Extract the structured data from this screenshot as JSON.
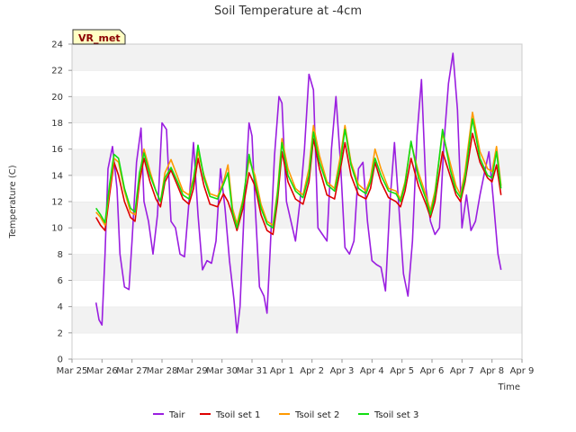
{
  "chart_data": {
    "type": "line",
    "title": "Soil Temperature at -4cm",
    "xlabel": "Time",
    "ylabel": "Temperature (C)",
    "ylim": [
      0,
      24
    ],
    "yticks": [
      0,
      2,
      4,
      6,
      8,
      10,
      12,
      14,
      16,
      18,
      20,
      22,
      24
    ],
    "xlim": [
      0,
      15
    ],
    "xtick_labels": [
      "Mar 25",
      "Mar 26",
      "Mar 27",
      "Mar 28",
      "Mar 29",
      "Mar 30",
      "Mar 31",
      "Apr 1",
      "Apr 2",
      "Apr 3",
      "Apr 4",
      "Apr 5",
      "Apr 6",
      "Apr 7",
      "Apr 8",
      "Apr 9"
    ],
    "x_unit": "days since Mar 25 00:00",
    "grid": "horizontal bands",
    "legend_position": "bottom",
    "station_badge": "VR_met",
    "colors": {
      "Tair": "#9a1ee0",
      "Tsoil set 1": "#dd0000",
      "Tsoil set 2": "#ff9900",
      "Tsoil set 3": "#11dd11"
    },
    "series": [
      {
        "name": "Tair",
        "x": [
          0.8,
          0.9,
          1.0,
          1.1,
          1.2,
          1.35,
          1.5,
          1.6,
          1.75,
          1.9,
          2.0,
          2.15,
          2.3,
          2.4,
          2.55,
          2.7,
          2.85,
          3.0,
          3.15,
          3.3,
          3.45,
          3.6,
          3.75,
          3.9,
          4.05,
          4.2,
          4.35,
          4.5,
          4.65,
          4.8,
          4.95,
          5.1,
          5.25,
          5.4,
          5.5,
          5.6,
          5.75,
          5.9,
          6.0,
          6.1,
          6.25,
          6.4,
          6.5,
          6.6,
          6.75,
          6.9,
          7.0,
          7.15,
          7.3,
          7.45,
          7.6,
          7.75,
          7.9,
          8.05,
          8.2,
          8.35,
          8.5,
          8.65,
          8.8,
          8.95,
          9.1,
          9.25,
          9.4,
          9.55,
          9.7,
          9.85,
          10.0,
          10.15,
          10.3,
          10.45,
          10.6,
          10.75,
          10.9,
          11.05,
          11.2,
          11.35,
          11.5,
          11.65,
          11.8,
          11.95,
          12.1,
          12.25,
          12.4,
          12.55,
          12.7,
          12.85,
          13.0,
          13.15,
          13.3,
          13.45,
          13.6,
          13.75,
          13.9,
          14.05,
          14.2,
          14.3
        ],
        "y": [
          4.3,
          3.0,
          2.6,
          8.0,
          14.5,
          16.2,
          13.0,
          8.0,
          5.5,
          5.3,
          9.0,
          15.0,
          17.6,
          12.0,
          10.5,
          8.0,
          11.0,
          18.0,
          17.5,
          10.5,
          10.0,
          8.0,
          7.8,
          12.0,
          16.5,
          11.0,
          6.8,
          7.5,
          7.3,
          9.0,
          14.5,
          11.5,
          7.5,
          4.5,
          2.0,
          4.0,
          12.0,
          18.0,
          17.0,
          12.0,
          5.5,
          4.8,
          3.5,
          8.0,
          15.5,
          20.0,
          19.5,
          12.0,
          10.5,
          9.0,
          12.0,
          16.0,
          21.7,
          20.5,
          10.0,
          9.5,
          9.0,
          16.0,
          20.0,
          15.0,
          8.5,
          8.0,
          9.0,
          14.5,
          15.0,
          10.5,
          7.5,
          7.2,
          7.0,
          5.2,
          12.0,
          16.5,
          11.5,
          6.5,
          4.8,
          9.0,
          17.0,
          21.3,
          13.0,
          10.5,
          9.5,
          10.0,
          16.5,
          21.0,
          23.3,
          19.0,
          10.0,
          12.5,
          9.8,
          10.5,
          12.5,
          14.2,
          15.8,
          12.0,
          8.0,
          6.8
        ]
      },
      {
        "name": "Tsoil set 1",
        "x": [
          0.8,
          0.95,
          1.1,
          1.25,
          1.4,
          1.55,
          1.75,
          1.95,
          2.1,
          2.25,
          2.4,
          2.6,
          2.8,
          2.95,
          3.1,
          3.3,
          3.5,
          3.7,
          3.9,
          4.05,
          4.2,
          4.4,
          4.6,
          4.85,
          5.05,
          5.2,
          5.35,
          5.5,
          5.7,
          5.9,
          6.1,
          6.3,
          6.5,
          6.7,
          6.85,
          7.0,
          7.2,
          7.45,
          7.7,
          7.9,
          8.05,
          8.25,
          8.5,
          8.75,
          8.95,
          9.1,
          9.3,
          9.55,
          9.8,
          9.95,
          10.1,
          10.3,
          10.55,
          10.8,
          10.95,
          11.1,
          11.3,
          11.55,
          11.8,
          11.95,
          12.1,
          12.35,
          12.6,
          12.8,
          12.95,
          13.1,
          13.35,
          13.6,
          13.85,
          14.0,
          14.15,
          14.3
        ],
        "y": [
          10.8,
          10.2,
          9.8,
          12.5,
          15.0,
          14.0,
          12.0,
          10.8,
          10.5,
          13.5,
          15.3,
          13.5,
          12.2,
          11.6,
          13.5,
          14.4,
          13.3,
          12.2,
          11.8,
          13.0,
          15.3,
          13.2,
          11.8,
          11.6,
          12.6,
          12.0,
          11.0,
          9.8,
          11.5,
          14.2,
          13.2,
          11.0,
          9.8,
          9.5,
          12.0,
          15.8,
          13.5,
          12.2,
          11.8,
          13.5,
          16.8,
          14.5,
          12.5,
          12.2,
          14.5,
          16.5,
          14.0,
          12.5,
          12.2,
          13.0,
          15.0,
          13.5,
          12.3,
          12.0,
          11.6,
          12.8,
          15.3,
          13.2,
          11.8,
          10.8,
          12.0,
          15.8,
          14.0,
          12.5,
          12.0,
          13.5,
          17.2,
          15.0,
          13.8,
          13.5,
          14.8,
          12.5
        ]
      },
      {
        "name": "Tsoil set 2",
        "x": [
          0.8,
          0.95,
          1.1,
          1.25,
          1.4,
          1.55,
          1.75,
          1.95,
          2.1,
          2.25,
          2.4,
          2.6,
          2.8,
          2.95,
          3.1,
          3.3,
          3.5,
          3.7,
          3.9,
          4.05,
          4.2,
          4.4,
          4.6,
          4.85,
          5.05,
          5.2,
          5.35,
          5.5,
          5.7,
          5.9,
          6.1,
          6.3,
          6.5,
          6.7,
          6.85,
          7.0,
          7.2,
          7.45,
          7.7,
          7.9,
          8.05,
          8.25,
          8.5,
          8.75,
          8.95,
          9.1,
          9.3,
          9.55,
          9.8,
          9.95,
          10.1,
          10.3,
          10.55,
          10.8,
          10.95,
          11.1,
          11.3,
          11.55,
          11.8,
          11.95,
          12.1,
          12.35,
          12.6,
          12.8,
          12.95,
          13.1,
          13.35,
          13.6,
          13.85,
          14.0,
          14.15,
          14.3
        ],
        "y": [
          11.2,
          10.8,
          10.2,
          13.0,
          15.3,
          15.0,
          12.8,
          11.2,
          11.0,
          14.0,
          16.0,
          14.3,
          12.8,
          12.0,
          14.2,
          15.2,
          14.0,
          12.8,
          12.5,
          13.8,
          15.8,
          14.0,
          12.6,
          12.4,
          13.5,
          14.8,
          11.5,
          10.3,
          12.2,
          15.2,
          14.0,
          11.8,
          10.5,
          10.2,
          12.8,
          16.8,
          14.5,
          13.0,
          12.5,
          14.5,
          17.8,
          15.5,
          13.5,
          13.0,
          15.5,
          17.8,
          15.0,
          13.3,
          12.8,
          13.8,
          16.0,
          14.5,
          13.0,
          12.8,
          12.2,
          13.5,
          16.5,
          14.2,
          12.5,
          11.3,
          12.8,
          17.2,
          15.0,
          13.2,
          12.5,
          14.3,
          18.8,
          15.8,
          14.5,
          14.3,
          16.2,
          13.2
        ]
      },
      {
        "name": "Tsoil set 3",
        "x": [
          0.8,
          0.95,
          1.1,
          1.25,
          1.4,
          1.55,
          1.75,
          1.95,
          2.1,
          2.25,
          2.4,
          2.6,
          2.8,
          2.95,
          3.1,
          3.3,
          3.5,
          3.7,
          3.9,
          4.05,
          4.2,
          4.4,
          4.6,
          4.85,
          5.05,
          5.2,
          5.35,
          5.5,
          5.7,
          5.9,
          6.1,
          6.3,
          6.5,
          6.7,
          6.85,
          7.0,
          7.2,
          7.45,
          7.7,
          7.9,
          8.05,
          8.25,
          8.5,
          8.75,
          8.95,
          9.1,
          9.3,
          9.55,
          9.8,
          9.95,
          10.1,
          10.3,
          10.55,
          10.8,
          10.95,
          11.1,
          11.3,
          11.55,
          11.8,
          11.95,
          12.1,
          12.35,
          12.6,
          12.8,
          12.95,
          13.1,
          13.35,
          13.6,
          13.85,
          14.0,
          14.15,
          14.3
        ],
        "y": [
          11.5,
          11.0,
          10.4,
          13.3,
          15.6,
          15.3,
          13.0,
          11.5,
          11.2,
          14.2,
          15.7,
          14.0,
          12.8,
          12.0,
          13.8,
          14.6,
          13.6,
          12.5,
          12.2,
          13.6,
          16.3,
          13.8,
          12.4,
          12.2,
          13.3,
          14.2,
          11.2,
          10.0,
          12.0,
          15.6,
          13.5,
          11.5,
          10.3,
          10.0,
          12.5,
          16.5,
          14.0,
          12.8,
          12.3,
          14.0,
          17.3,
          15.0,
          13.3,
          12.8,
          15.0,
          17.5,
          14.8,
          13.0,
          12.6,
          13.5,
          15.3,
          14.0,
          12.8,
          12.6,
          12.0,
          13.3,
          16.6,
          13.8,
          12.2,
          11.0,
          12.5,
          17.5,
          14.5,
          12.8,
          12.3,
          13.8,
          18.3,
          15.3,
          14.0,
          13.8,
          15.8,
          13.0
        ]
      }
    ]
  }
}
